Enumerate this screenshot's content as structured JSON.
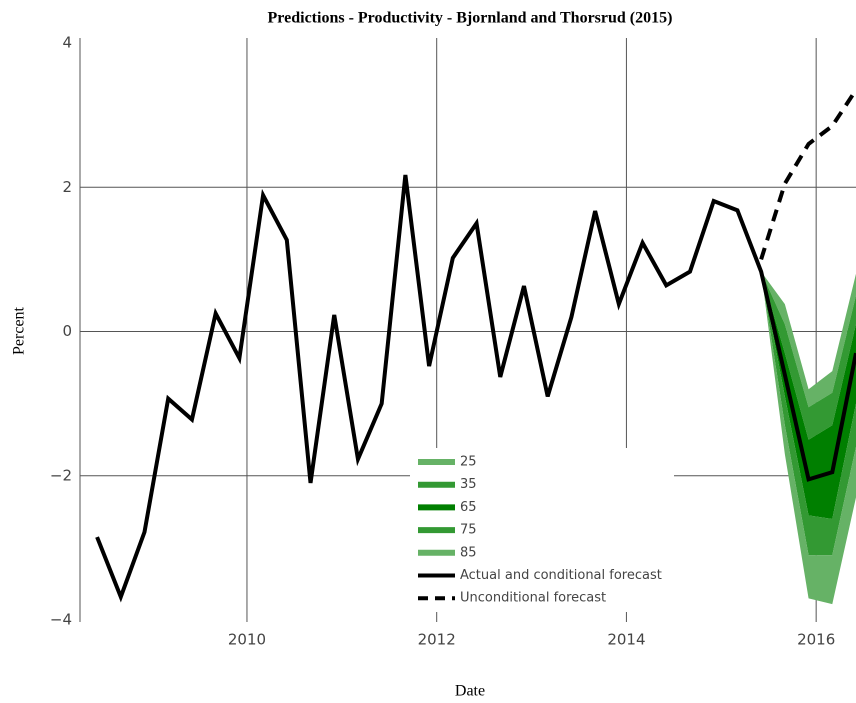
{
  "chart_data": {
    "type": "line",
    "title": "Predictions -  Productivity - Bjornland and Thorsrud (2015)",
    "x_label": "Date",
    "y_label": "Percent",
    "x": [
      2008.42,
      2008.67,
      2008.92,
      2009.17,
      2009.42,
      2009.67,
      2009.92,
      2010.17,
      2010.42,
      2010.67,
      2010.92,
      2011.17,
      2011.42,
      2011.67,
      2011.92,
      2012.17,
      2012.42,
      2012.67,
      2012.92,
      2013.17,
      2013.42,
      2013.67,
      2013.92,
      2014.17,
      2014.42,
      2014.67,
      2014.92,
      2015.17,
      2015.42,
      2015.67,
      2015.92,
      2016.17,
      2016.42
    ],
    "bands": [
      {
        "name": "25",
        "color": "#66b266",
        "x": [
          2015.42,
          2015.67,
          2015.92,
          2016.17,
          2016.42
        ],
        "upper": [
          0.83,
          0.38,
          -0.8,
          -0.55,
          0.8
        ],
        "lower": [
          0.83,
          0.1,
          -1.05,
          -0.85,
          0.5
        ]
      },
      {
        "name": "35",
        "color": "#339933",
        "x": [
          2015.42,
          2015.67,
          2015.92,
          2016.17,
          2016.42
        ],
        "upper": [
          0.83,
          0.1,
          -1.05,
          -0.85,
          0.5
        ],
        "lower": [
          0.83,
          -0.3,
          -1.5,
          -1.3,
          0.1
        ]
      },
      {
        "name": "65",
        "color": "#007f00",
        "x": [
          2015.42,
          2015.67,
          2015.92,
          2016.17,
          2016.42
        ],
        "upper": [
          0.83,
          -0.3,
          -1.5,
          -1.3,
          0.1
        ],
        "lower": [
          0.83,
          -0.9,
          -2.55,
          -2.6,
          -1.0
        ]
      },
      {
        "name": "75",
        "color": "#339933",
        "x": [
          2015.42,
          2015.67,
          2015.92,
          2016.17,
          2016.42
        ],
        "upper": [
          0.83,
          -0.9,
          -2.55,
          -2.6,
          -1.0
        ],
        "lower": [
          0.83,
          -1.3,
          -3.1,
          -3.1,
          -1.6
        ]
      },
      {
        "name": "85",
        "color": "#66b266",
        "x": [
          2015.42,
          2015.67,
          2015.92,
          2016.17,
          2016.42
        ],
        "upper": [
          0.83,
          -1.3,
          -3.1,
          -3.1,
          -1.6
        ],
        "lower": [
          0.83,
          -1.7,
          -3.7,
          -3.78,
          -2.3
        ]
      }
    ],
    "series": [
      {
        "name": "Actual and conditional forecast",
        "color": "#000000",
        "dash": false,
        "values": [
          -2.85,
          -3.68,
          -2.78,
          -0.93,
          -1.22,
          0.25,
          -0.37,
          1.89,
          1.27,
          -2.1,
          0.23,
          -1.77,
          -1.0,
          2.17,
          -0.48,
          1.02,
          1.5,
          -0.63,
          0.63,
          -0.9,
          0.2,
          1.67,
          0.38,
          1.23,
          0.64,
          0.83,
          1.81,
          1.68,
          0.83,
          -0.6,
          -2.05,
          -1.95,
          -0.3
        ]
      },
      {
        "name": "Unconditional forecast",
        "color": "#000000",
        "dash": true,
        "values": [
          null,
          null,
          null,
          null,
          null,
          null,
          null,
          null,
          null,
          null,
          null,
          null,
          null,
          null,
          null,
          null,
          null,
          null,
          null,
          null,
          null,
          null,
          null,
          null,
          null,
          null,
          null,
          null,
          1.0,
          2.05,
          2.6,
          2.85,
          3.35
        ]
      }
    ],
    "xlim": [
      2008.24,
      2016.42
    ],
    "ylim": [
      -4,
      4
    ],
    "xticks": [
      2010,
      2012,
      2014,
      2016
    ],
    "yticks": [
      {
        "value": -4,
        "label": "−4"
      },
      {
        "value": -2,
        "label": "−2"
      },
      0,
      2,
      4
    ],
    "grid": true
  }
}
